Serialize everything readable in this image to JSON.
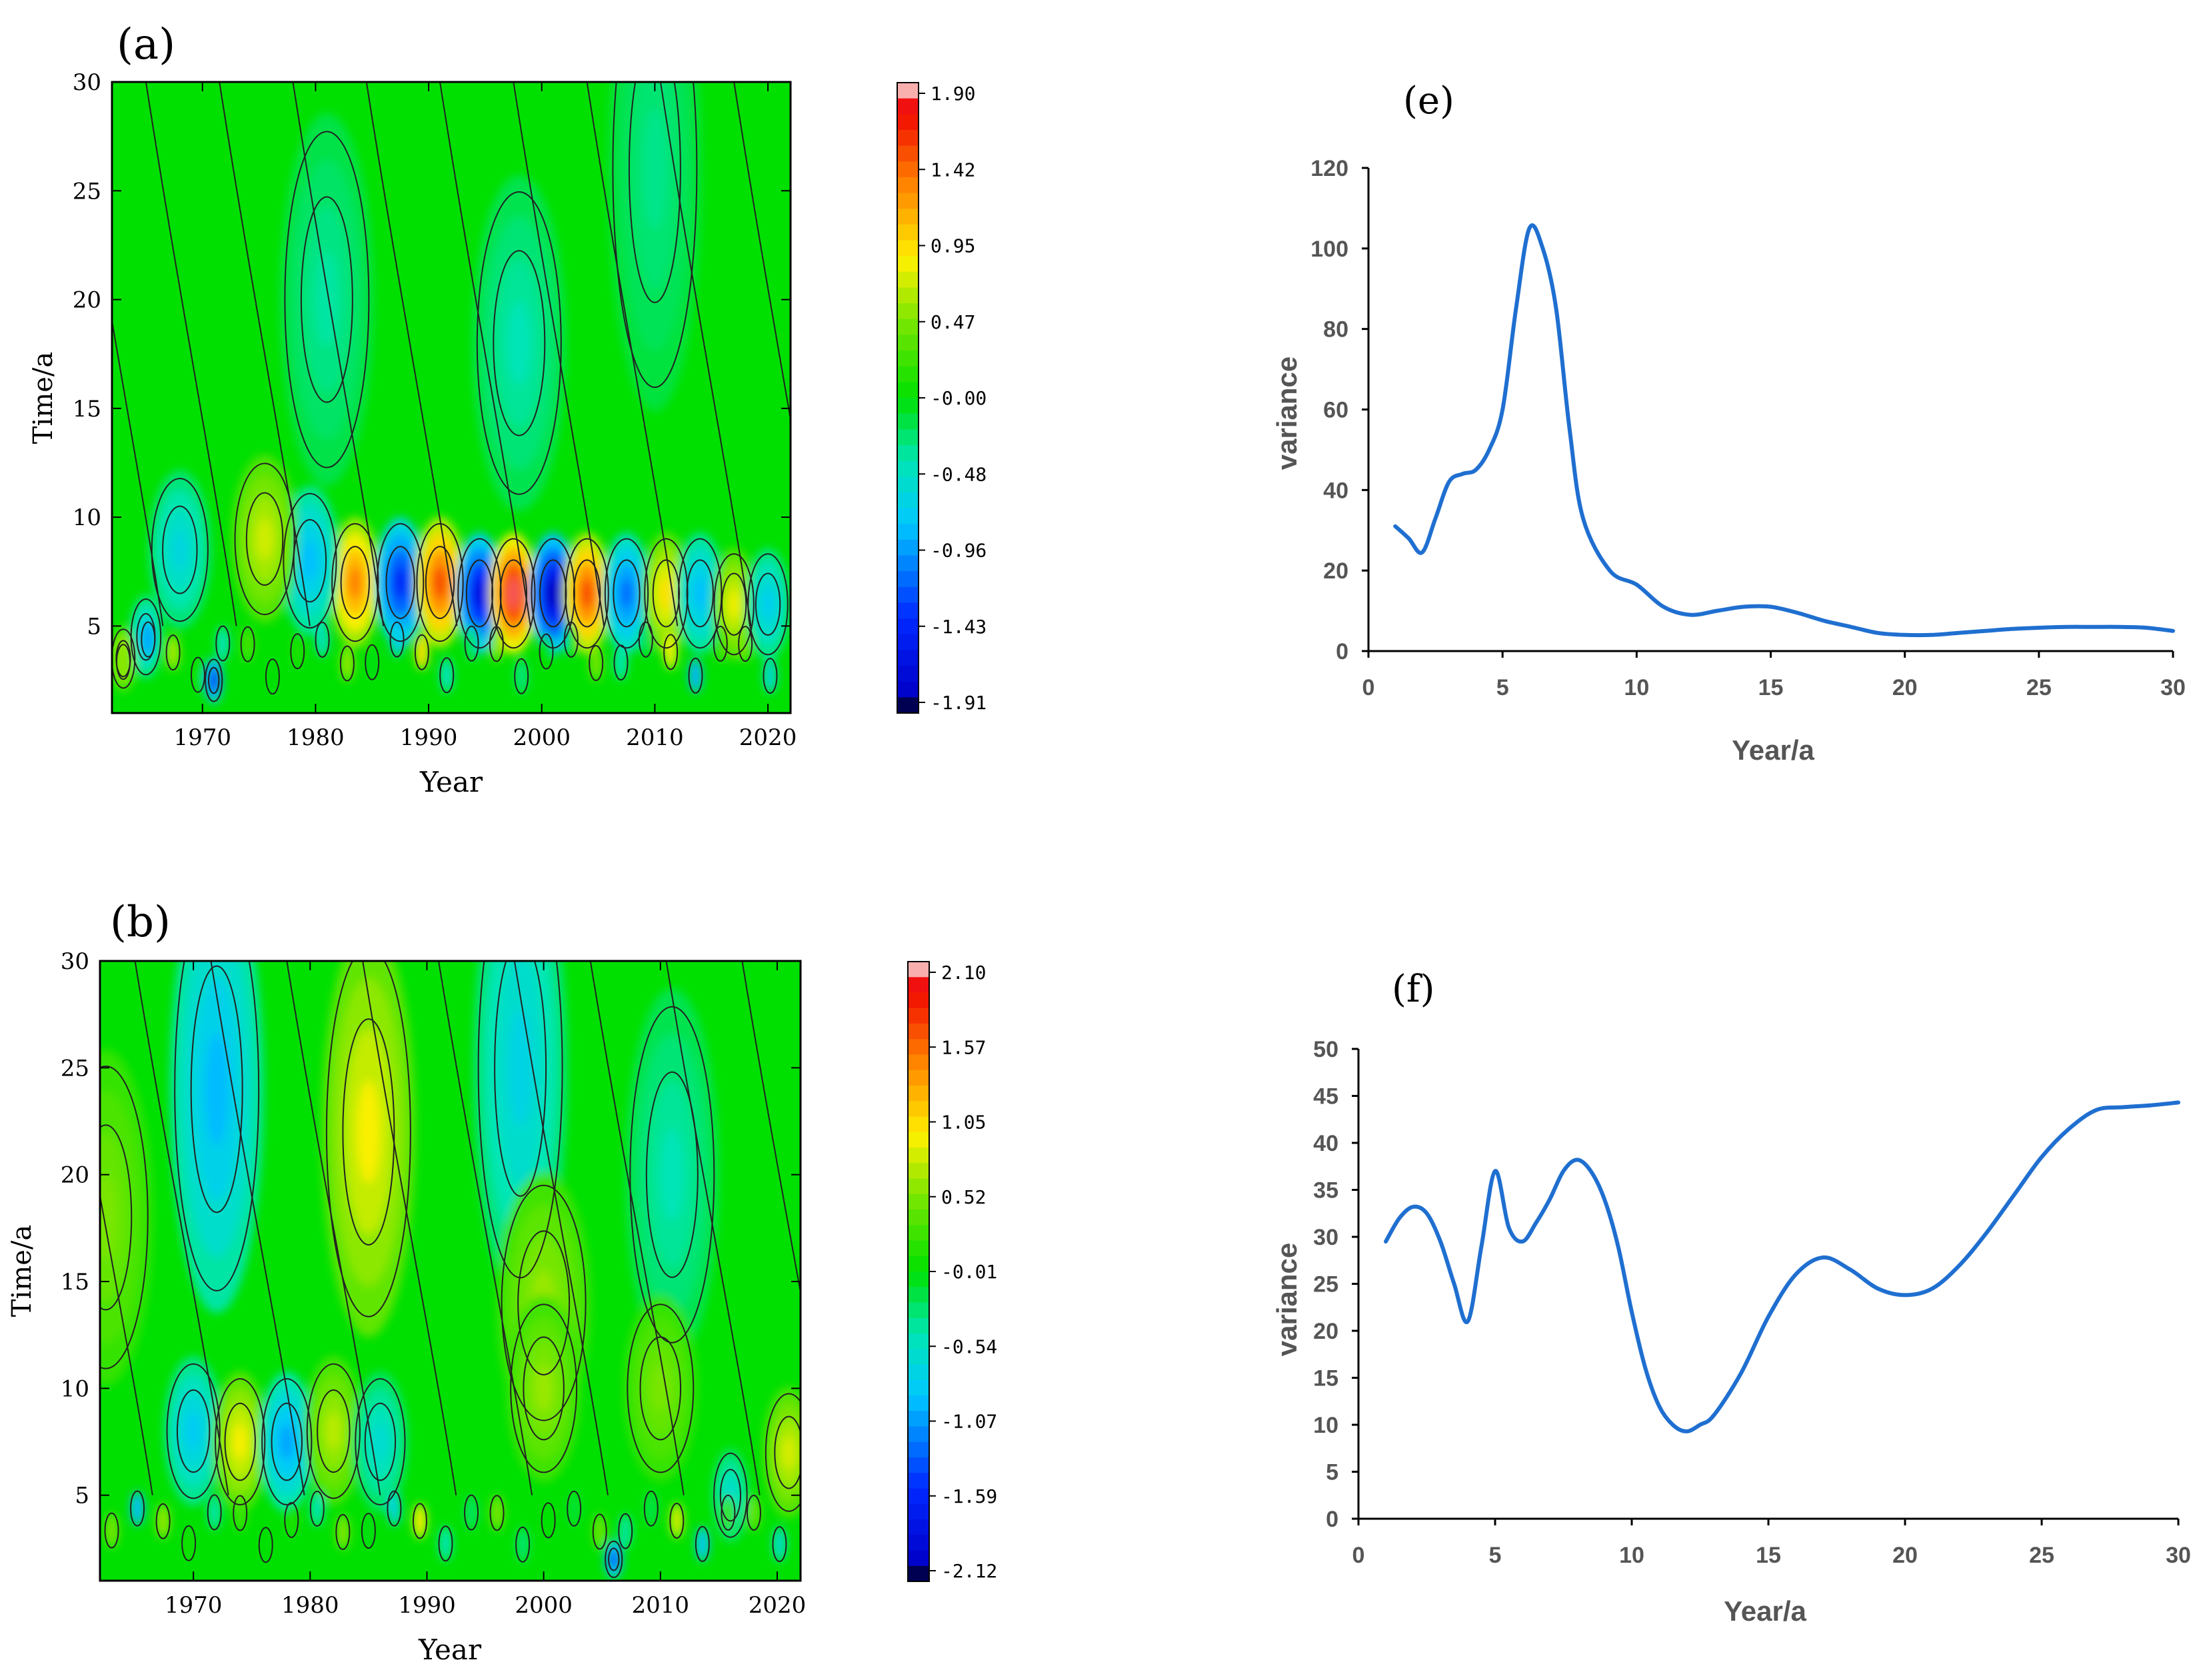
{
  "chart_data": [
    {
      "id": "a",
      "type": "heatmap",
      "panel_label": "(a)",
      "xlabel": "Year",
      "ylabel": "Time/a",
      "xlim": [
        1962,
        2022
      ],
      "ylim": [
        1,
        30
      ],
      "xticks": [
        1970,
        1980,
        1990,
        2000,
        2010,
        2020
      ],
      "yticks": [
        5,
        10,
        15,
        20,
        25,
        30
      ],
      "colorbar": {
        "ticks": [
          "1.90",
          "1.42",
          "0.95",
          "0.47",
          "-0.00",
          "-0.48",
          "-0.96",
          "-1.43",
          "-1.91"
        ],
        "min": -1.91,
        "max": 1.9
      },
      "features": [
        {
          "year": 1983.5,
          "period": 7,
          "value": 1.3
        },
        {
          "year": 1987.5,
          "period": 7,
          "value": -1.4
        },
        {
          "year": 1991,
          "period": 7,
          "value": 1.5
        },
        {
          "year": 1994.5,
          "period": 6.5,
          "value": -1.6
        },
        {
          "year": 1997.5,
          "period": 6.5,
          "value": 1.8
        },
        {
          "year": 2001,
          "period": 6.5,
          "value": -1.8
        },
        {
          "year": 2004,
          "period": 6.5,
          "value": 1.5
        },
        {
          "year": 2007.5,
          "period": 6.5,
          "value": -1.1
        },
        {
          "year": 2011,
          "period": 6.5,
          "value": 0.9
        },
        {
          "year": 2014,
          "period": 6.5,
          "value": -0.8
        },
        {
          "year": 2017,
          "period": 6,
          "value": 0.8
        },
        {
          "year": 2020,
          "period": 6,
          "value": -0.7
        },
        {
          "year": 1979.5,
          "period": 8,
          "value": -0.8
        },
        {
          "year": 1975.5,
          "period": 9,
          "value": 0.7
        },
        {
          "year": 1968,
          "period": 8.5,
          "value": -0.6
        },
        {
          "year": 1971,
          "period": 2.5,
          "value": -1.5
        },
        {
          "year": 1965,
          "period": 4.5,
          "value": -0.7
        },
        {
          "year": 1963,
          "period": 3.5,
          "value": 0.8
        },
        {
          "year": 1981,
          "period": 20,
          "value": -0.35
        },
        {
          "year": 1998,
          "period": 18,
          "value": -0.4
        },
        {
          "year": 2010,
          "period": 26,
          "value": -0.3
        }
      ]
    },
    {
      "id": "b",
      "type": "heatmap",
      "panel_label": "(b)",
      "xlabel": "Year",
      "ylabel": "Time/a",
      "xlim": [
        1962,
        2022
      ],
      "ylim": [
        1,
        30
      ],
      "xticks": [
        1970,
        1980,
        1990,
        2000,
        2010,
        2020
      ],
      "yticks": [
        5,
        10,
        15,
        20,
        25,
        30
      ],
      "colorbar": {
        "ticks": [
          "2.10",
          "1.57",
          "1.05",
          "0.52",
          "-0.01",
          "-0.54",
          "-1.07",
          "-1.59",
          "-2.12"
        ],
        "min": -2.12,
        "max": 2.1
      },
      "features": [
        {
          "year": 1972,
          "period": 24,
          "value": -0.9
        },
        {
          "year": 1985,
          "period": 22,
          "value": 0.9
        },
        {
          "year": 1998,
          "period": 25,
          "value": -0.7
        },
        {
          "year": 2011,
          "period": 20,
          "value": -0.45
        },
        {
          "year": 2000,
          "period": 14,
          "value": 0.6
        },
        {
          "year": 1962.5,
          "period": 18,
          "value": 0.5
        },
        {
          "year": 1970,
          "period": 8,
          "value": -0.8
        },
        {
          "year": 1974,
          "period": 7.5,
          "value": 0.9
        },
        {
          "year": 1978,
          "period": 7.5,
          "value": -1.0
        },
        {
          "year": 1982,
          "period": 8,
          "value": 0.7
        },
        {
          "year": 1986,
          "period": 7.5,
          "value": -0.6
        },
        {
          "year": 2000,
          "period": 10,
          "value": 0.6
        },
        {
          "year": 2010,
          "period": 10,
          "value": 0.5
        },
        {
          "year": 2021,
          "period": 7,
          "value": 0.8
        },
        {
          "year": 2006,
          "period": 2,
          "value": -1.5
        },
        {
          "year": 2016,
          "period": 5,
          "value": -0.6
        }
      ]
    },
    {
      "id": "e",
      "type": "line",
      "panel_label": "(e)",
      "xlabel": "Year/a",
      "ylabel": "variance",
      "xlim": [
        0,
        30
      ],
      "ylim": [
        0,
        120
      ],
      "xticks": [
        "0",
        "5",
        "10",
        "15",
        "20",
        "25",
        "30"
      ],
      "yticks": [
        "0",
        "20",
        "40",
        "60",
        "80",
        "100",
        "120"
      ],
      "series": [
        {
          "name": "variance",
          "color": "#1f6fd0",
          "x": [
            1,
            1.5,
            2,
            2.5,
            3,
            3.5,
            4,
            4.5,
            5,
            5.5,
            6,
            6.5,
            7,
            7.5,
            8,
            9,
            10,
            11,
            12,
            13,
            14,
            15,
            16,
            17,
            18,
            19,
            20,
            21,
            22,
            23,
            24,
            25,
            26,
            27,
            28,
            29,
            30
          ],
          "y": [
            31,
            28,
            24.5,
            33,
            42,
            44,
            45,
            50,
            60,
            85,
            105,
            100,
            85,
            55,
            33,
            20,
            16.5,
            11,
            9,
            10,
            11,
            11,
            9.5,
            7.5,
            6,
            4.5,
            4,
            4,
            4.5,
            5,
            5.5,
            5.8,
            6,
            6,
            6,
            5.8,
            5
          ]
        }
      ]
    },
    {
      "id": "f",
      "type": "line",
      "panel_label": "(f)",
      "xlabel": "Year/a",
      "ylabel": "variance",
      "xlim": [
        0,
        30
      ],
      "ylim": [
        0,
        50
      ],
      "xticks": [
        "0",
        "5",
        "10",
        "15",
        "20",
        "25",
        "30"
      ],
      "yticks": [
        "0",
        "5",
        "10",
        "15",
        "20",
        "25",
        "30",
        "35",
        "40",
        "45",
        "50"
      ],
      "series": [
        {
          "name": "variance",
          "color": "#1f6fd0",
          "x": [
            1,
            1.5,
            2,
            2.5,
            3,
            3.5,
            4,
            4.5,
            5,
            5.5,
            6,
            6.5,
            7,
            7.5,
            8,
            8.5,
            9,
            9.5,
            10,
            10.5,
            11,
            11.5,
            12,
            12.5,
            13,
            14,
            15,
            16,
            17,
            18,
            19,
            20,
            21,
            22,
            23,
            24,
            25,
            26,
            27,
            28,
            29,
            30
          ],
          "y": [
            29.5,
            32,
            33.2,
            32.5,
            29.5,
            25,
            21,
            29,
            37,
            31,
            29.5,
            31.5,
            34,
            37,
            38.2,
            37,
            34,
            29,
            22,
            16,
            12,
            10,
            9.3,
            10,
            11,
            15.5,
            21.5,
            26,
            27.8,
            26.5,
            24.5,
            23.8,
            24.5,
            27,
            30.5,
            34.5,
            38.5,
            41.5,
            43.5,
            43.8,
            44,
            44.3
          ]
        }
      ]
    }
  ]
}
